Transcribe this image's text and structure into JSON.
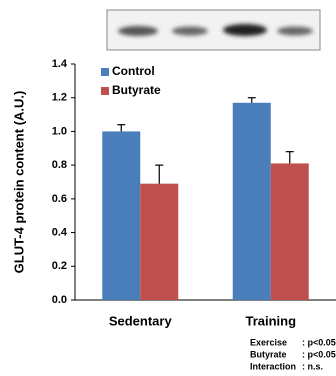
{
  "chart_data": {
    "type": "bar",
    "y_label": "GLUT-4 protein content (A.U.)",
    "categories": [
      "Sedentary",
      "Training"
    ],
    "series": [
      {
        "name": "Control",
        "color": "#4a7ebb",
        "values": [
          1.0,
          1.17
        ],
        "errors": [
          0.04,
          0.03
        ]
      },
      {
        "name": "Butyrate",
        "color": "#c0504d",
        "values": [
          0.69,
          0.81
        ],
        "errors": [
          0.11,
          0.07
        ]
      }
    ],
    "ylim": [
      0,
      1.4
    ],
    "yticks": [
      {
        "value": 0,
        "label": "0.0"
      },
      0.2,
      0.4,
      0.6,
      0.8,
      {
        "value": 1,
        "label": "1.0"
      },
      1.2,
      1.4
    ],
    "legend": "top-left",
    "annotations": [
      {
        "label": "Exercise",
        "value": ": p<0.05"
      },
      {
        "label": "Butyrate",
        "value": ": p<0.05"
      },
      {
        "label": "Interaction",
        "value": ": n.s."
      }
    ]
  }
}
